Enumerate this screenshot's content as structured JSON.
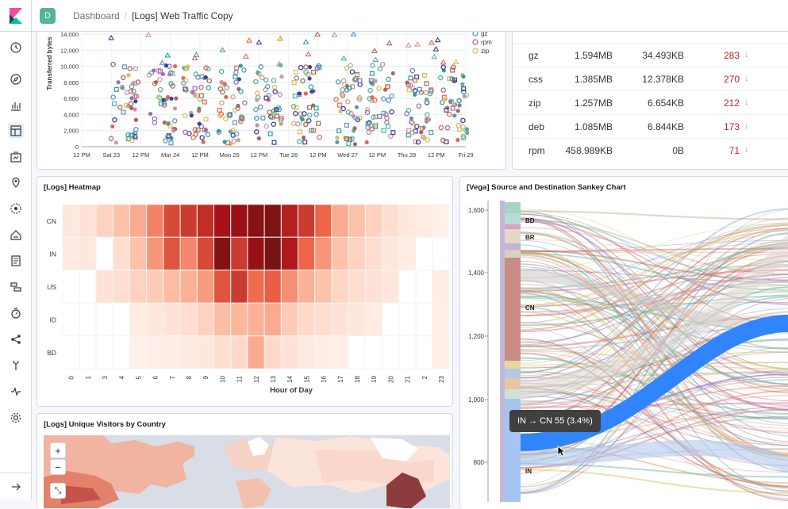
{
  "app": {
    "space_initial": "D"
  },
  "breadcrumbs": {
    "root": "Dashboard",
    "separator": "/",
    "current": "[Logs] Web Traffic Copy"
  },
  "nav_icons": [
    "clock-icon",
    "compass-icon",
    "visualize-icon",
    "dashboard-icon",
    "canvas-icon",
    "maps-icon",
    "ml-icon",
    "infra-icon",
    "logs-icon",
    "apm-icon",
    "uptime-icon",
    "graph-icon",
    "dev-tools-icon",
    "monitoring-icon",
    "management-icon"
  ],
  "scatter": {
    "ylabel": "Transferred bytes",
    "yticks": [
      "14,000",
      "12,000",
      "10,000",
      "8,000",
      "6,000",
      "4,000",
      "2,000",
      "0"
    ],
    "xticks": [
      "12 PM",
      "Sat 23",
      "12 PM",
      "Mar 24",
      "12 PM",
      "Mon 25",
      "12 PM",
      "Tue 26",
      "12 PM",
      "Wed 27",
      "12 PM",
      "Thu 28",
      "12 PM",
      "Fri 29"
    ],
    "legend": [
      {
        "label": "gz",
        "color": "#6092c0"
      },
      {
        "label": "rpm",
        "color": "#d36086"
      },
      {
        "label": "zip",
        "color": "#d6bf57"
      }
    ]
  },
  "table": {
    "rows": [
      {
        "ext": "gz",
        "avg": "1.594MB",
        "sum": "34.493KB",
        "count": "283"
      },
      {
        "ext": "css",
        "avg": "1.385MB",
        "sum": "12.378KB",
        "count": "270"
      },
      {
        "ext": "zip",
        "avg": "1.257MB",
        "sum": "6.654KB",
        "count": "212"
      },
      {
        "ext": "deb",
        "avg": "1.085MB",
        "sum": "6.844KB",
        "count": "173"
      },
      {
        "ext": "rpm",
        "avg": "458.989KB",
        "sum": "0B",
        "count": "71"
      }
    ],
    "sort_icon": "↓"
  },
  "heatmap": {
    "title": "[Logs] Heatmap",
    "countries": [
      "CN",
      "IN",
      "US",
      "ID",
      "BD"
    ],
    "hours": [
      "0",
      "1",
      "3",
      "4",
      "5",
      "6",
      "7",
      "8",
      "9",
      "10",
      "11",
      "12",
      "13",
      "14",
      "15",
      "16",
      "17",
      "18",
      "19",
      "20",
      "21",
      "2",
      "23"
    ],
    "xlabel": "Hour of Day",
    "values": [
      [
        0.06,
        0.08,
        0.15,
        0.22,
        0.3,
        0.42,
        0.58,
        0.62,
        0.66,
        0.74,
        0.8,
        0.92,
        0.98,
        0.7,
        0.62,
        0.5,
        0.3,
        0.22,
        0.15,
        0.1,
        0.06,
        0.04,
        0.02
      ],
      [
        0.05,
        0.06,
        0.0,
        0.1,
        0.22,
        0.36,
        0.55,
        0.4,
        0.58,
        0.95,
        0.62,
        0.82,
        1.0,
        0.72,
        0.5,
        0.36,
        0.22,
        0.15,
        0.1,
        0.06,
        0.04,
        0.0,
        0.0
      ],
      [
        0.0,
        0.0,
        0.08,
        0.1,
        0.15,
        0.18,
        0.24,
        0.28,
        0.34,
        0.55,
        0.62,
        0.48,
        0.52,
        0.38,
        0.28,
        0.22,
        0.14,
        0.1,
        0.08,
        0.06,
        0.0,
        0.0,
        0.04
      ],
      [
        0.0,
        0.0,
        0.0,
        0.0,
        0.04,
        0.06,
        0.08,
        0.1,
        0.15,
        0.24,
        0.26,
        0.28,
        0.3,
        0.18,
        0.12,
        0.1,
        0.08,
        0.06,
        0.04,
        0.0,
        0.0,
        0.0,
        0.03
      ],
      [
        0.0,
        0.0,
        0.0,
        0.0,
        0.02,
        0.03,
        0.04,
        0.05,
        0.06,
        0.1,
        0.12,
        0.3,
        0.12,
        0.08,
        0.05,
        0.04,
        0.03,
        0.0,
        0.0,
        0.0,
        0.0,
        0.0,
        0.03
      ]
    ]
  },
  "sankey": {
    "title": "[Vega] Source and Destination Sankey Chart",
    "yticks": [
      "1,600",
      "1,400",
      "1,200",
      "1,000",
      "800"
    ],
    "nodes": [
      "BD",
      "BR",
      "CN",
      "IN"
    ],
    "tooltip": "IN → CN 55 (3.4%)"
  },
  "map": {
    "title": "[Logs] Unique Visitors by Country",
    "zoom_in": "+",
    "zoom_out": "−",
    "fit": "⤡"
  },
  "colors": {
    "accent": "#006bb8",
    "heat_max": "#8b1a1a",
    "flow_highlight": "#3185fc"
  }
}
